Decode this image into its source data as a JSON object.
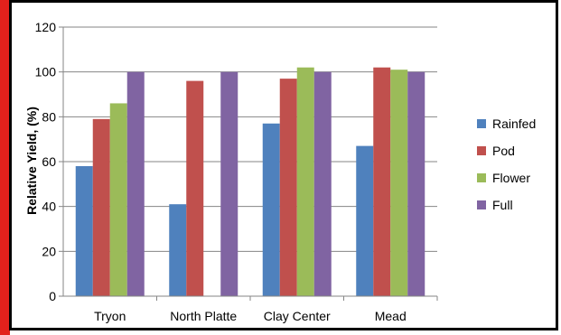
{
  "chart_data": {
    "type": "bar",
    "title": "",
    "xlabel": "",
    "ylabel": "Relative Yield, (%)",
    "ylim": [
      0,
      120
    ],
    "yticks": [
      0,
      20,
      40,
      60,
      80,
      100,
      120
    ],
    "ytick_labels": [
      "0",
      "20",
      "40",
      "60",
      "80",
      "100",
      "120"
    ],
    "categories": [
      "Tryon",
      "North Platte",
      "Clay Center",
      "Mead"
    ],
    "series": [
      {
        "name": "Rainfed",
        "color": "#4F81BD",
        "values": [
          58,
          41,
          77,
          67
        ]
      },
      {
        "name": "Pod",
        "color": "#C0504D",
        "values": [
          79,
          96,
          97,
          102
        ]
      },
      {
        "name": "Flower",
        "color": "#9BBB59",
        "values": [
          86,
          null,
          102,
          101
        ]
      },
      {
        "name": "Full",
        "color": "#8064A2",
        "values": [
          100,
          100,
          100,
          100
        ]
      }
    ],
    "grid": true,
    "legend_position": "right",
    "colors": {
      "frame": "#000000",
      "left_accent": "#E2211C",
      "gridline": "#868686",
      "axis": "#868686"
    }
  }
}
